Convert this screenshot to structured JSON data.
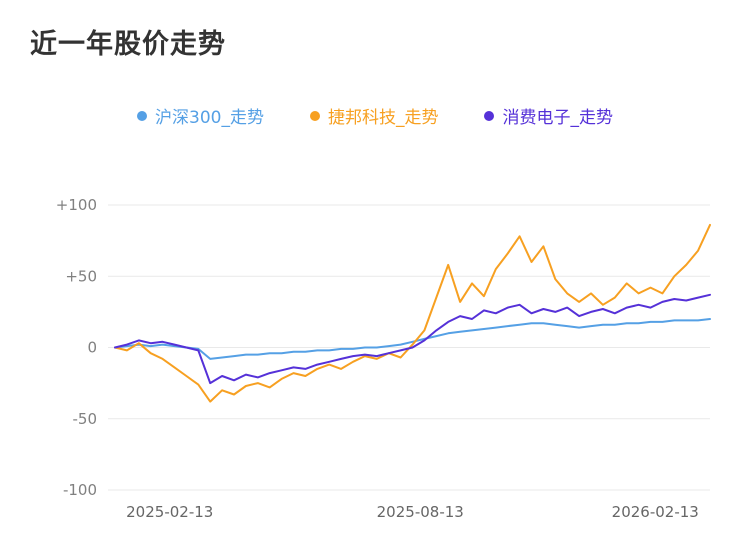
{
  "title": "近一年股价走势",
  "colors": {
    "background": "#ffffff",
    "title": "#333333",
    "grid": "#e9e9e9",
    "y_axis_label": "#808080",
    "x_axis_label": "#666666"
  },
  "chart_data": {
    "type": "line",
    "title": "近一年股价走势",
    "subtitle": "",
    "xlabel": "",
    "ylabel": "",
    "ylim": [
      -100,
      100
    ],
    "grid": true,
    "legend_position": "top",
    "yticks": [
      {
        "label": "+100",
        "value": 100
      },
      {
        "label": "+50",
        "value": 50
      },
      {
        "label": "0",
        "value": 0
      },
      {
        "label": "-50",
        "value": -50
      },
      {
        "label": "-100",
        "value": -100
      }
    ],
    "xticks": [
      "2025-02-13",
      "2025-08-13",
      "2026-02-13"
    ],
    "x_range": [
      "2025-02-13",
      "2026-02-13"
    ],
    "series": [
      {
        "key": "hs300",
        "name": "沪深300_走势",
        "color": "#55a0e5",
        "values": [
          0,
          1,
          2,
          1,
          2,
          1,
          0,
          -1,
          -8,
          -7,
          -6,
          -5,
          -5,
          -4,
          -4,
          -3,
          -3,
          -2,
          -2,
          -1,
          -1,
          0,
          0,
          1,
          2,
          4,
          6,
          8,
          10,
          11,
          12,
          13,
          14,
          15,
          16,
          17,
          17,
          16,
          15,
          14,
          15,
          16,
          16,
          17,
          17,
          18,
          18,
          19,
          19,
          19,
          20
        ]
      },
      {
        "key": "jiebang",
        "name": "捷邦科技_走势",
        "color": "#f7a021",
        "values": [
          0,
          -2,
          3,
          -4,
          -8,
          -14,
          -20,
          -26,
          -38,
          -30,
          -33,
          -27,
          -25,
          -28,
          -22,
          -18,
          -20,
          -15,
          -12,
          -15,
          -10,
          -6,
          -8,
          -4,
          -7,
          2,
          12,
          35,
          58,
          32,
          45,
          36,
          55,
          66,
          78,
          60,
          71,
          48,
          38,
          32,
          38,
          30,
          35,
          45,
          38,
          42,
          38,
          50,
          58,
          68,
          86
        ]
      },
      {
        "key": "xiaofeidianzi",
        "name": "消费电子_走势",
        "color": "#5531d8",
        "values": [
          0,
          2,
          5,
          3,
          4,
          2,
          0,
          -2,
          -25,
          -20,
          -23,
          -19,
          -21,
          -18,
          -16,
          -14,
          -15,
          -12,
          -10,
          -8,
          -6,
          -5,
          -6,
          -4,
          -2,
          0,
          5,
          12,
          18,
          22,
          20,
          26,
          24,
          28,
          30,
          24,
          27,
          25,
          28,
          22,
          25,
          27,
          24,
          28,
          30,
          28,
          32,
          34,
          33,
          35,
          37
        ]
      }
    ]
  }
}
